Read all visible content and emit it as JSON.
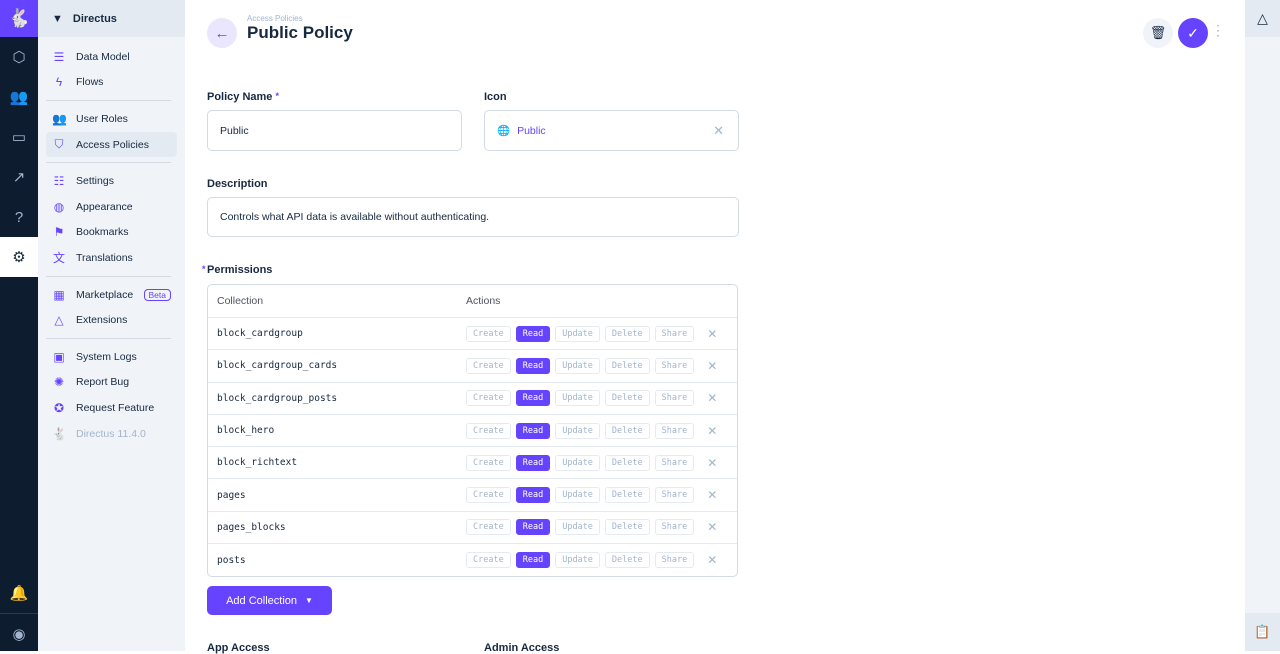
{
  "rail": {
    "icons": [
      "directus-logo-icon",
      "cube-icon",
      "users-icon",
      "folder-icon",
      "insights-icon",
      "help-icon",
      "settings-icon",
      "bell-icon",
      "account-icon"
    ]
  },
  "nav": {
    "project": "Directus",
    "items": [
      {
        "label": "Data Model",
        "icon": "database-icon"
      },
      {
        "label": "Flows",
        "icon": "bolt-icon"
      },
      {
        "label": "User Roles",
        "icon": "group-icon"
      },
      {
        "label": "Access Policies",
        "icon": "shield-icon"
      },
      {
        "label": "Settings",
        "icon": "tune-icon"
      },
      {
        "label": "Appearance",
        "icon": "palette-icon"
      },
      {
        "label": "Bookmarks",
        "icon": "bookmark-icon"
      },
      {
        "label": "Translations",
        "icon": "translate-icon"
      },
      {
        "label": "Marketplace",
        "icon": "store-icon",
        "badge": "Beta"
      },
      {
        "label": "Extensions",
        "icon": "extensions-icon"
      },
      {
        "label": "System Logs",
        "icon": "terminal-icon"
      },
      {
        "label": "Report Bug",
        "icon": "bug-icon"
      },
      {
        "label": "Request Feature",
        "icon": "verified-icon"
      },
      {
        "label": "Directus 11.4.0",
        "icon": "rabbit-icon"
      }
    ]
  },
  "header": {
    "breadcrumb": "Access Policies",
    "title": "Public Policy"
  },
  "form": {
    "policy_name_label": "Policy Name",
    "policy_name": "Public",
    "icon_label": "Icon",
    "icon_value": "Public",
    "description_label": "Description",
    "description": "Controls what API data is available without authenticating.",
    "permissions_label": "Permissions",
    "app_access_label": "App Access",
    "admin_access_label": "Admin Access"
  },
  "permissions": {
    "headers": [
      "Collection",
      "Actions"
    ],
    "actions": [
      "Create",
      "Read",
      "Update",
      "Delete",
      "Share"
    ],
    "rows": [
      {
        "collection": "block_cardgroup"
      },
      {
        "collection": "block_cardgroup_cards"
      },
      {
        "collection": "block_cardgroup_posts"
      },
      {
        "collection": "block_hero"
      },
      {
        "collection": "block_richtext"
      },
      {
        "collection": "pages"
      },
      {
        "collection": "pages_blocks"
      },
      {
        "collection": "posts"
      }
    ],
    "enabled": "Read"
  },
  "add_collection": "Add Collection",
  "colors": {
    "accent": "#6644ff",
    "rail": "#0e1c2f",
    "nav_bg": "#f0f4f9"
  }
}
